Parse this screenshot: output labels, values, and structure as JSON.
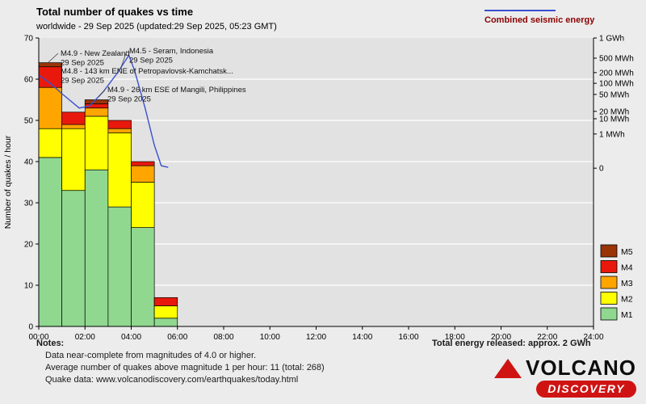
{
  "colors": {
    "page_background": "#ececec",
    "plot_background": "#e2e2e2",
    "grid": "#ffffff",
    "energy_label_text": "#8b0000",
    "logo_red": "#cf1313"
  },
  "header": {
    "title": "Total number of quakes vs time",
    "subtitle": "worldwide - 29 Sep 2025 (updated:29 Sep 2025, 05:23 GMT)",
    "energy_legend_label": "Combined seismic energy"
  },
  "chart_data": {
    "type": "bar",
    "stacked": true,
    "ylabel": "Number of quakes / hour",
    "ylim": [
      0,
      70
    ],
    "y_ticks": [
      0,
      10,
      20,
      30,
      40,
      50,
      60,
      70
    ],
    "x_ticks": [
      "00:00",
      "02:00",
      "04:00",
      "06:00",
      "08:00",
      "10:00",
      "12:00",
      "14:00",
      "16:00",
      "18:00",
      "20:00",
      "22:00",
      "24:00"
    ],
    "x_axis_hours": 24,
    "bar_hours": [
      0,
      1,
      2,
      3,
      4,
      5
    ],
    "series": [
      {
        "name": "M1",
        "color": "#90d890",
        "values": [
          41,
          33,
          38,
          29,
          24,
          2
        ]
      },
      {
        "name": "M2",
        "color": "#ffff00",
        "values": [
          7,
          15,
          13,
          18,
          11,
          3
        ]
      },
      {
        "name": "M3",
        "color": "#ffa500",
        "values": [
          10,
          1,
          2,
          1,
          4,
          0
        ]
      },
      {
        "name": "M4",
        "color": "#e8190c",
        "values": [
          5,
          3,
          1,
          2,
          1,
          2
        ]
      },
      {
        "name": "M5",
        "color": "#993308",
        "values": [
          1,
          0,
          1,
          0,
          0,
          0
        ]
      }
    ],
    "total_quakes": 268,
    "avg_per_hour": 11,
    "energy_line": {
      "name": "Combined seismic energy",
      "color": "#3a50cf",
      "points_hour_value": [
        [
          0,
          61
        ],
        [
          0.5,
          59
        ],
        [
          1.0,
          56.5
        ],
        [
          1.75,
          53
        ],
        [
          2.2,
          53.5
        ],
        [
          2.8,
          57
        ],
        [
          3.4,
          61.5
        ],
        [
          3.9,
          65.8
        ],
        [
          4.15,
          62
        ],
        [
          4.6,
          53
        ],
        [
          5.0,
          44
        ],
        [
          5.3,
          39
        ],
        [
          5.6,
          38.6
        ]
      ]
    },
    "right_axis_ticks": [
      {
        "label": "1 GWh",
        "v": 70
      },
      {
        "label": "500 MWh",
        "v": 65.1
      },
      {
        "label": "200 MWh",
        "v": 61.6
      },
      {
        "label": "100 MWh",
        "v": 59.0
      },
      {
        "label": "50 MWh",
        "v": 56.3
      },
      {
        "label": "20 MWh",
        "v": 52.2
      },
      {
        "label": "10 MWh",
        "v": 50.4
      },
      {
        "label": "1 MWh",
        "v": 46.7
      },
      {
        "label": "0",
        "v": 38.4
      }
    ],
    "annotations": [
      {
        "lines": [
          "M4.9 - New Zealand",
          "29 Sep 2025"
        ],
        "x": 75,
        "y": 69,
        "leader": [
          [
            72,
            66
          ],
          [
            60,
            77
          ]
        ]
      },
      {
        "lines": [
          "M4.5 - Seram, Indonesia",
          "29 Sep 2025"
        ],
        "x": 160,
        "y": 66,
        "leader": [
          [
            157,
            63
          ],
          [
            149,
            86
          ]
        ]
      },
      {
        "lines": [
          "M4.8 - 143 km ENE of Petropavlovsk-Kamchatsk...",
          "29 Sep 2025"
        ],
        "x": 75,
        "y": 91
      },
      {
        "lines": [
          "M4.9 - 26 km ESE of Mangili, Philippines",
          "29 Sep 2025"
        ],
        "x": 133,
        "y": 114,
        "leader": [
          [
            130,
            111
          ],
          [
            122,
            120
          ]
        ]
      }
    ]
  },
  "notes": {
    "heading": "Notes:",
    "lines": [
      "Data near-complete from magnitudes of 4.0 or higher.",
      "Average number of quakes above magnitude 1 per hour: 11 (total: 268)",
      "Quake data: www.volcanodiscovery.com/earthquakes/today.html"
    ],
    "total_energy": "Total energy released: approx. 2 GWh"
  },
  "logo": {
    "line1": "VOLCANO",
    "line2": "DISCOVERY"
  }
}
